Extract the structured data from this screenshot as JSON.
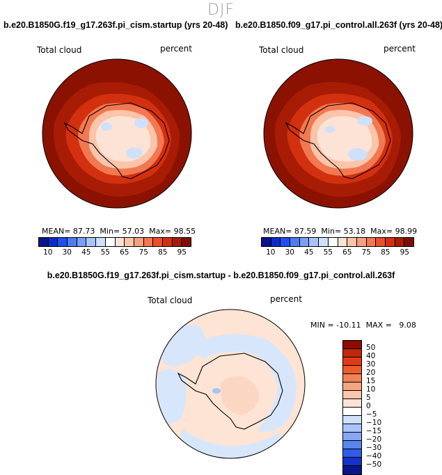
{
  "figure": {
    "season": "DJF"
  },
  "panels": [
    {
      "title": "b.e20.B1850G.f19_g17.263f.pi_cism.startup (yrs 20-48)",
      "variable": "Total cloud",
      "units": "percent",
      "stats": {
        "mean_label": "MEAN=",
        "mean": "87.73",
        "min_label": "Min=",
        "min": "57.03",
        "max_label": "Max=",
        "max": "98.55"
      }
    },
    {
      "title": "b.e20.B1850.f09_g17.pi_control.all.263f (yrs 20-48)",
      "variable": "Total cloud",
      "units": "percent",
      "stats": {
        "mean_label": "MEAN=",
        "mean": "87.59",
        "min_label": "Min=",
        "min": "53.18",
        "max_label": "Max=",
        "max": "98.99"
      }
    },
    {
      "title": "b.e20.B1850G.f19_g17.263f.pi_cism.startup - b.e20.B1850.f09_g17.pi_control.all.263f",
      "variable": "Total cloud",
      "units": "percent",
      "stats_text": "MIN = -10.11  MAX =   9.08"
    }
  ],
  "colorbar_abs": {
    "labels": [
      "10",
      "30",
      "45",
      "55",
      "65",
      "75",
      "85",
      "95"
    ],
    "colors": [
      "#08138c",
      "#0c2cc8",
      "#1f4ff0",
      "#4c7cf2",
      "#7aa0f5",
      "#a9c4f8",
      "#cfe0fb",
      "#ffffff",
      "#fde3d6",
      "#fac5ab",
      "#f7a07e",
      "#f27851",
      "#e84f2a",
      "#d2300f",
      "#a81c05",
      "#7e0e00"
    ]
  },
  "colorbar_diff": {
    "labels": [
      "50",
      "40",
      "30",
      "20",
      "15",
      "10",
      "5",
      "0",
      "−5",
      "−10",
      "−15",
      "−20",
      "−30",
      "−40",
      "−50"
    ],
    "colors": [
      "#8a0d00",
      "#c2260b",
      "#e03c14",
      "#ec5c2c",
      "#f2825a",
      "#f7a581",
      "#fac5ab",
      "#fde4d4",
      "#ffffff",
      "#cfe0fb",
      "#a9c4f8",
      "#86a8f4",
      "#5a86ef",
      "#2f5ceb",
      "#1432c8",
      "#08158a"
    ]
  },
  "chart_data": [
    {
      "type": "heatmap",
      "projection": "south-polar-stereographic",
      "title": "b.e20.B1850G.f19_g17.263f.pi_cism.startup (yrs 20-48)",
      "variable": "Total cloud",
      "units": "percent",
      "mean": 87.73,
      "min": 57.03,
      "max": 98.55,
      "contour_levels": [
        10,
        30,
        45,
        55,
        65,
        75,
        85,
        95
      ]
    },
    {
      "type": "heatmap",
      "projection": "south-polar-stereographic",
      "title": "b.e20.B1850.f09_g17.pi_control.all.263f (yrs 20-48)",
      "variable": "Total cloud",
      "units": "percent",
      "mean": 87.59,
      "min": 53.18,
      "max": 98.99,
      "contour_levels": [
        10,
        30,
        45,
        55,
        65,
        75,
        85,
        95
      ]
    },
    {
      "type": "heatmap",
      "projection": "south-polar-stereographic",
      "title": "b.e20.B1850G.f19_g17.263f.pi_cism.startup - b.e20.B1850.f09_g17.pi_control.all.263f",
      "variable": "Total cloud",
      "units": "percent",
      "min": -10.11,
      "max": 9.08,
      "contour_levels": [
        -50,
        -40,
        -30,
        -20,
        -15,
        -10,
        -5,
        0,
        5,
        10,
        15,
        20,
        30,
        40,
        50
      ]
    }
  ]
}
